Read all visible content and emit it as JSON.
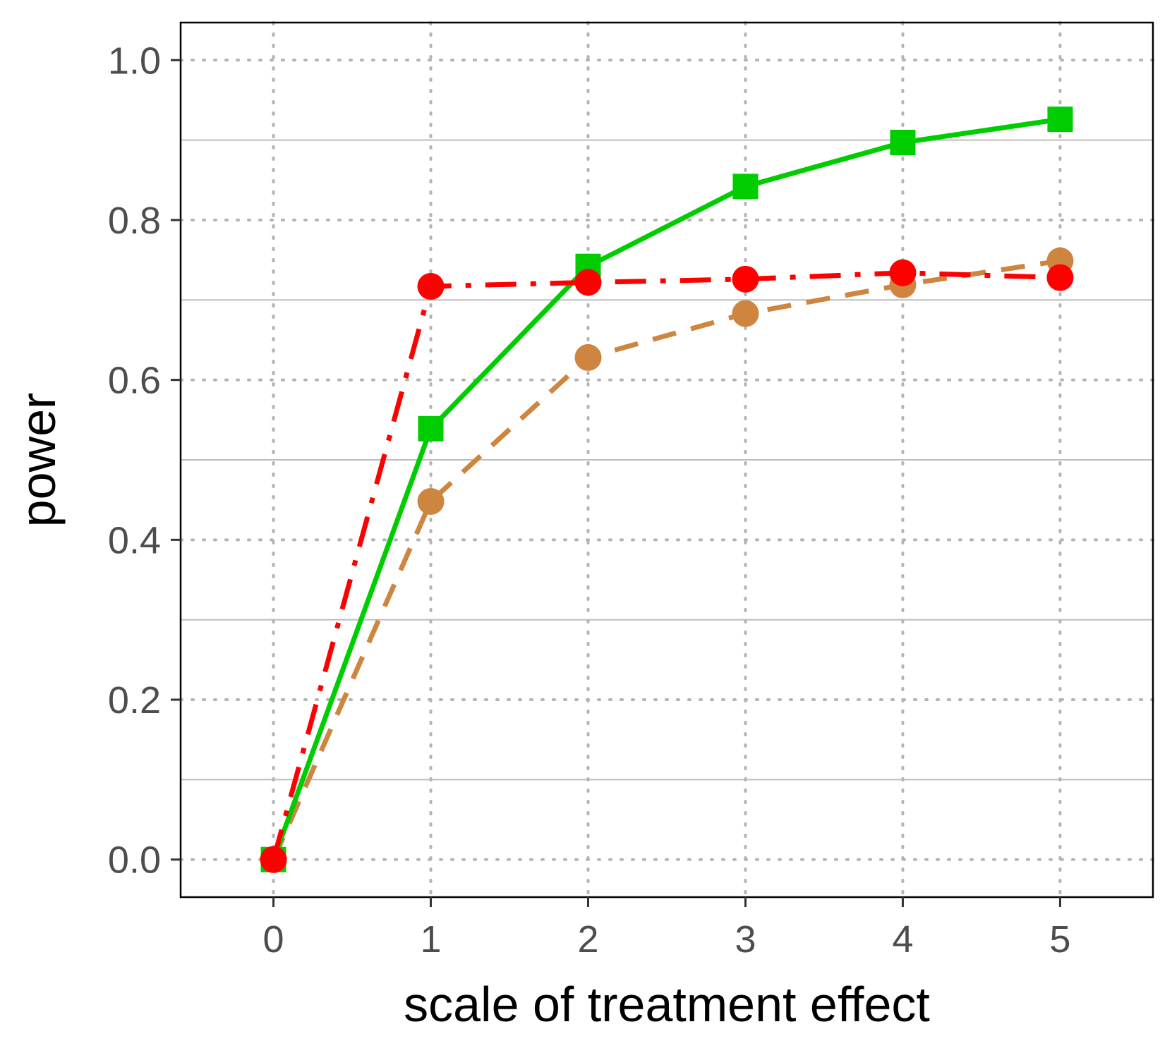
{
  "chart_data": {
    "type": "line",
    "xlabel": "scale of treatment effect",
    "ylabel": "power",
    "xlim": [
      -0.59,
      5.59
    ],
    "ylim": [
      -0.047,
      1.047
    ],
    "x_ticks": [
      "0",
      "1",
      "2",
      "3",
      "4",
      "5"
    ],
    "y_ticks": [
      "0.0",
      "0.2",
      "0.4",
      "0.6",
      "0.8",
      "1.0"
    ],
    "grid": true,
    "x": [
      0,
      1,
      2,
      3,
      4,
      5
    ],
    "series": [
      {
        "values": [
          0.0,
          0.448,
          0.628,
          0.683,
          0.719,
          0.749
        ],
        "color": "#cd853f",
        "line": "dashed",
        "marker": "circle"
      },
      {
        "values": [
          0.0,
          0.539,
          0.742,
          0.842,
          0.897,
          0.926
        ],
        "color": "#00cd00",
        "line": "solid",
        "marker": "square"
      },
      {
        "values": [
          0.0,
          0.717,
          0.722,
          0.726,
          0.734,
          0.728
        ],
        "color": "#ff0000",
        "line": "dashdot",
        "marker": "circle"
      }
    ]
  }
}
